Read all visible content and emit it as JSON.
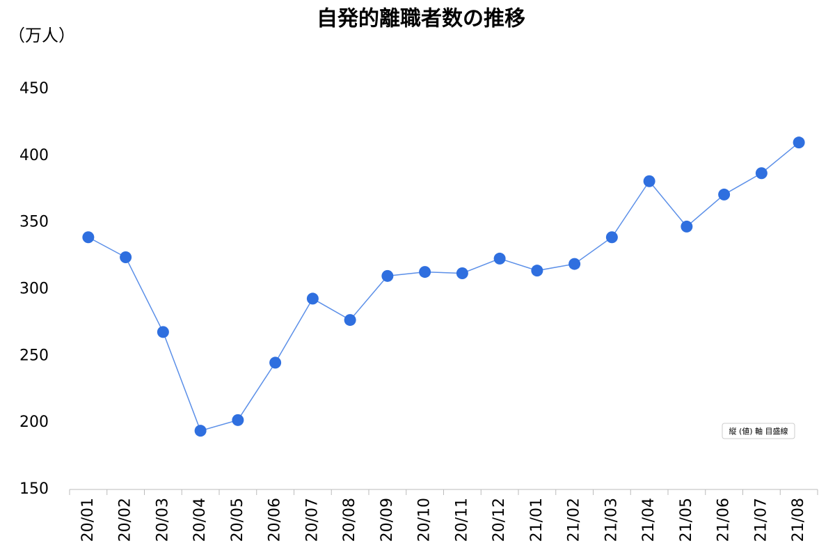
{
  "chart_data": {
    "type": "line",
    "title": "自発的離職者数の推移",
    "y_label": "（万人）",
    "categories": [
      "20/01",
      "20/02",
      "20/03",
      "20/04",
      "20/05",
      "20/06",
      "20/07",
      "20/08",
      "20/09",
      "20/10",
      "20/11",
      "20/12",
      "21/01",
      "21/02",
      "21/03",
      "21/04",
      "21/05",
      "21/06",
      "21/07",
      "21/08"
    ],
    "series": [
      {
        "name": "自発的離職者数",
        "color": "#2f6fdf",
        "values": [
          339,
          324,
          268,
          194,
          202,
          245,
          293,
          277,
          310,
          313,
          312,
          323,
          314,
          319,
          339,
          381,
          347,
          371,
          387,
          410
        ]
      }
    ],
    "ylim": [
      150,
      450
    ],
    "yticks": [
      150,
      200,
      250,
      300,
      350,
      400,
      450
    ],
    "grid": false,
    "tooltip": "縦 (値) 軸 目盛線"
  }
}
